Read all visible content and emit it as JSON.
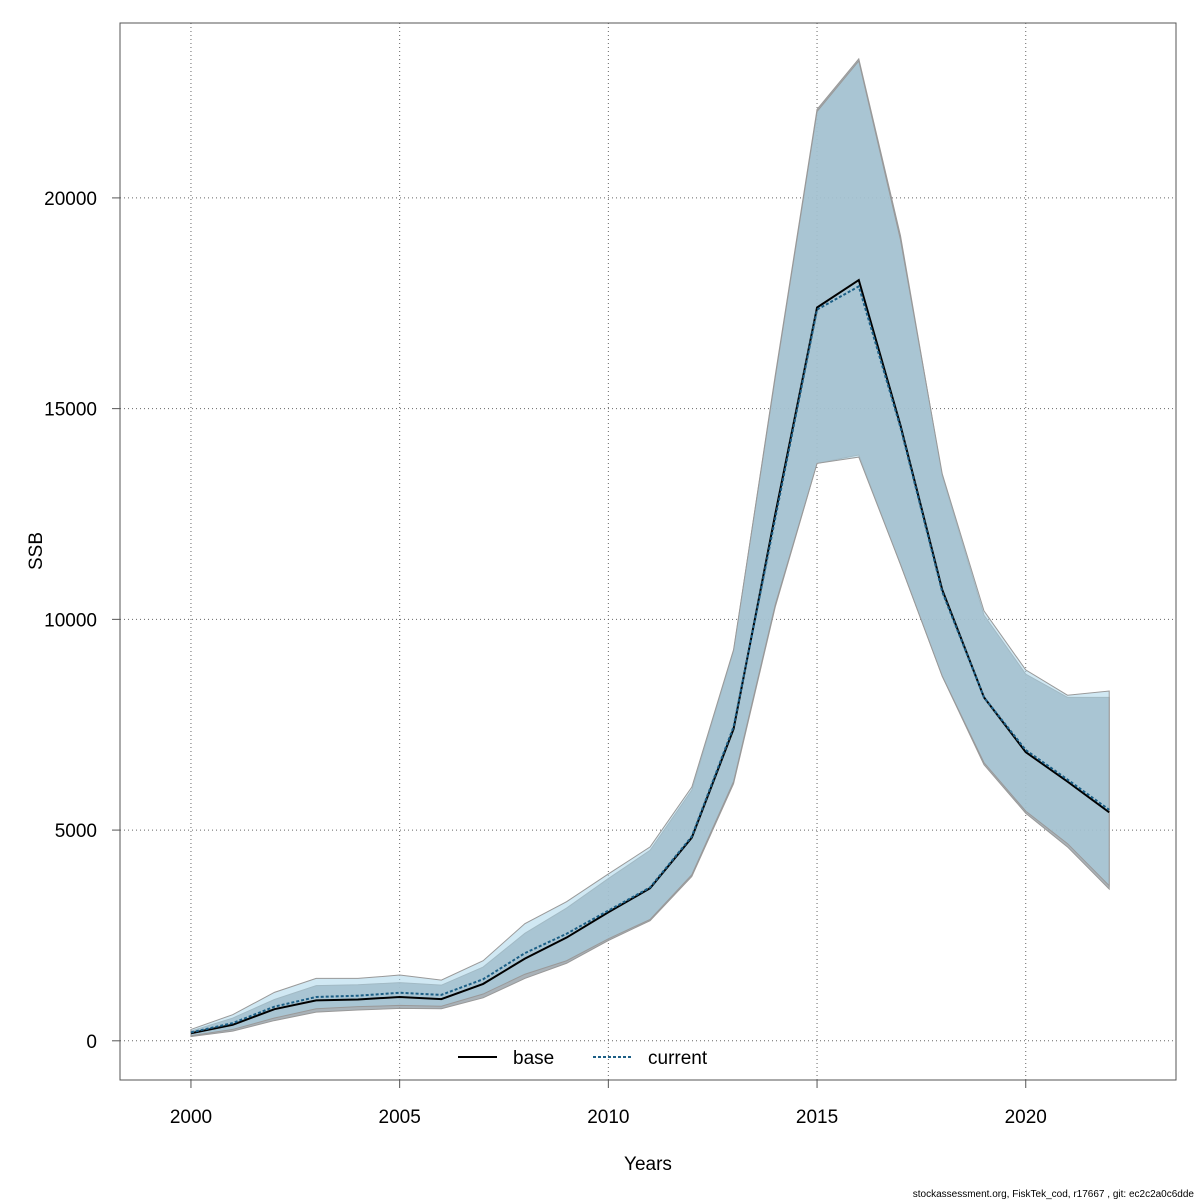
{
  "chart_data": {
    "type": "line",
    "xlabel": "Years",
    "ylabel": "SSB",
    "xlim": [
      1998.3,
      2023.6
    ],
    "ylim": [
      -930,
      24150
    ],
    "x_ticks": [
      2000,
      2005,
      2010,
      2015,
      2020
    ],
    "x_tick_labels": [
      "2000",
      "2005",
      "2010",
      "2015",
      "2020"
    ],
    "y_ticks": [
      0,
      5000,
      10000,
      15000,
      20000
    ],
    "y_tick_labels": [
      "0",
      "5000",
      "10000",
      "15000",
      "20000"
    ],
    "grid": true,
    "legend_position": "bottom-center",
    "x": [
      2000,
      2001,
      2002,
      2003,
      2004,
      2005,
      2006,
      2007,
      2008,
      2009,
      2010,
      2011,
      2012,
      2013,
      2014,
      2015,
      2016,
      2017,
      2018,
      2019,
      2020,
      2021,
      2022
    ],
    "series": [
      {
        "name": "base",
        "line_color": "#000000",
        "line_style": "solid",
        "band_color": "#9aa4ab",
        "values": [
          180,
          380,
          750,
          960,
          980,
          1040,
          990,
          1350,
          1950,
          2450,
          3050,
          3620,
          4820,
          7400,
          12500,
          17400,
          18050,
          14600,
          10700,
          8150,
          6850,
          6150,
          5420
        ],
        "lower": [
          100,
          230,
          480,
          680,
          730,
          770,
          760,
          1020,
          1480,
          1840,
          2380,
          2850,
          3900,
          6100,
          10300,
          13700,
          13900,
          11300,
          8650,
          6550,
          5400,
          4600,
          3600
        ],
        "upper": [
          230,
          540,
          980,
          1310,
          1330,
          1380,
          1320,
          1750,
          2550,
          3150,
          3850,
          4520,
          5950,
          9250,
          15800,
          22100,
          23300,
          19100,
          13400,
          10100,
          8700,
          8150,
          8150
        ]
      },
      {
        "name": "current",
        "line_color": "#1c5f86",
        "line_style": "dotted",
        "band_color": "#a9d5ea",
        "values": [
          200,
          420,
          810,
          1040,
          1070,
          1140,
          1090,
          1460,
          2080,
          2540,
          3090,
          3640,
          4850,
          7450,
          12400,
          17350,
          17900,
          14550,
          10650,
          8150,
          6900,
          6200,
          5480
        ],
        "lower": [
          120,
          270,
          540,
          760,
          810,
          840,
          820,
          1110,
          1580,
          1900,
          2420,
          2880,
          3940,
          6150,
          10350,
          13700,
          13850,
          11300,
          8650,
          6600,
          5450,
          4680,
          3680
        ],
        "upper": [
          270,
          620,
          1150,
          1480,
          1480,
          1560,
          1440,
          1900,
          2780,
          3300,
          3960,
          4600,
          6020,
          9280,
          15750,
          22050,
          23250,
          19000,
          13450,
          10200,
          8800,
          8200,
          8300
        ]
      }
    ]
  },
  "footer": "stockassessment.org, FiskTek_cod, r17667 , git: ec2c2a0c6dde"
}
